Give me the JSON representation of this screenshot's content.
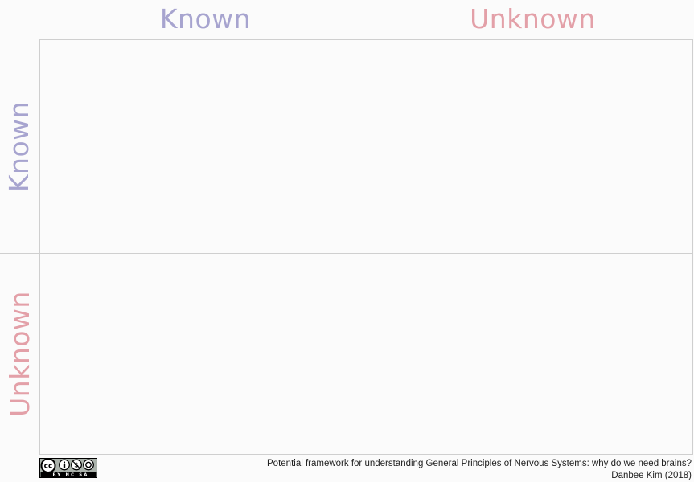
{
  "columns": [
    {
      "label": "Known"
    },
    {
      "label": "Unknown"
    }
  ],
  "rows": [
    {
      "label": "Known"
    },
    {
      "label": "Unknown"
    }
  ],
  "cells": [
    {
      "row": "Known",
      "column": "Known",
      "text": ""
    },
    {
      "row": "Known",
      "column": "Unknown",
      "text": ""
    },
    {
      "row": "Unknown",
      "column": "Known",
      "text": ""
    },
    {
      "row": "Unknown",
      "column": "Unknown",
      "text": ""
    }
  ],
  "colors": {
    "known": "#a7a4cf",
    "unknown": "#e3a0a8",
    "grid": "#cfcfcf",
    "background": "#fbfbfb"
  },
  "footer": {
    "caption": "Potential framework for understanding General Principles of Nervous Systems: why do we need brains?",
    "author": "Danbee Kim (2018)",
    "license_icon": "creative-commons-by-nc-sa-icon",
    "license_badge_text": "BY NC SA"
  }
}
